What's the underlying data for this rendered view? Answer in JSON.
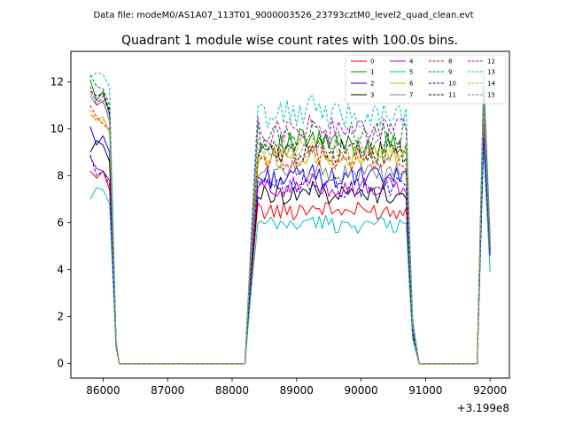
{
  "figure": {
    "suptitle": "Data file: modeM0/AS1A07_113T01_9000003526_23793cztM0_level2_quad_clean.evt",
    "offset_label": "+3.199e8"
  },
  "chart_data": {
    "type": "line",
    "title": "Quadrant 1 module wise count rates with 100.0s bins.",
    "xlabel": "",
    "ylabel": "",
    "x_offset": 319900000,
    "xlim": [
      85500,
      92300
    ],
    "ylim": [
      -0.62,
      13.3
    ],
    "grid": false,
    "legend": {
      "placement": "top-right",
      "columns": 4
    },
    "xticks": [
      86000,
      87000,
      88000,
      89000,
      90000,
      91000,
      92000
    ],
    "yticks": [
      0,
      2,
      4,
      6,
      8,
      10,
      12
    ],
    "xtick_labels": [
      "86000",
      "87000",
      "88000",
      "89000",
      "90000",
      "91000",
      "92000"
    ],
    "ytick_labels": [
      "0",
      "2",
      "4",
      "6",
      "8",
      "10",
      "12"
    ],
    "segments": [
      {
        "start": 85800,
        "end": 86300
      },
      {
        "start": 88200,
        "end": 90900
      },
      {
        "start": 91800,
        "end": 92000
      }
    ],
    "series": [
      {
        "name": "0",
        "color": "#ff0000",
        "dash": "solid",
        "seg1": [
          8.2,
          7.9,
          8.2,
          7.4,
          0.8
        ],
        "seg2_base": 6.5,
        "seg3_peak": 10.4,
        "seg3_end": 4.8
      },
      {
        "name": "1",
        "color": "#008000",
        "dash": "solid",
        "seg1": [
          12.1,
          11.2,
          11.6,
          10.6,
          0.9
        ],
        "seg2_base": 9.3,
        "seg3_peak": 11.8,
        "seg3_end": 5.2
      },
      {
        "name": "2",
        "color": "#0000ff",
        "dash": "solid",
        "seg1": [
          10.1,
          9.3,
          9.7,
          9.0,
          0.8
        ],
        "seg2_base": 7.9,
        "seg3_peak": 10.6,
        "seg3_end": 4.9
      },
      {
        "name": "3",
        "color": "#000000",
        "dash": "solid",
        "seg1": [
          9.0,
          9.5,
          9.3,
          8.6,
          0.8
        ],
        "seg2_base": 7.2,
        "seg3_peak": 9.8,
        "seg3_end": 4.7
      },
      {
        "name": "4",
        "color": "#bf00bf",
        "dash": "solid",
        "seg1": [
          8.8,
          8.3,
          8.2,
          7.8,
          0.8
        ],
        "seg2_base": 7.5,
        "seg3_peak": 10.0,
        "seg3_end": 4.7
      },
      {
        "name": "5",
        "color": "#00bfbf",
        "dash": "solid",
        "seg1": [
          7.0,
          7.5,
          7.4,
          6.8,
          0.7
        ],
        "seg2_base": 5.9,
        "seg3_peak": 9.2,
        "seg3_end": 3.9
      },
      {
        "name": "6",
        "color": "#bfbf00",
        "dash": "solid",
        "seg1": [
          10.6,
          10.4,
          10.5,
          9.8,
          0.9
        ],
        "seg2_base": 8.8,
        "seg3_peak": 11.2,
        "seg3_end": 5.0
      },
      {
        "name": "7",
        "color": "#808080",
        "dash": "solid",
        "seg1": [
          11.4,
          11.0,
          11.2,
          10.3,
          0.9
        ],
        "seg2_base": 8.1,
        "seg3_peak": 10.8,
        "seg3_end": 5.0
      },
      {
        "name": "8",
        "color": "#ff0000",
        "dash": "dashed",
        "seg1": [
          11.0,
          10.5,
          10.2,
          10.0,
          0.9
        ],
        "seg2_base": 8.7,
        "seg3_peak": 11.0,
        "seg3_end": 5.0
      },
      {
        "name": "9",
        "color": "#008000",
        "dash": "dashed",
        "seg1": [
          12.3,
          11.8,
          11.7,
          11.0,
          1.0
        ],
        "seg2_base": 9.7,
        "seg3_peak": 12.0,
        "seg3_end": 5.3
      },
      {
        "name": "10",
        "color": "#0000ff",
        "dash": "dashed",
        "seg1": [
          8.9,
          8.0,
          8.2,
          7.6,
          0.8
        ],
        "seg2_base": 7.5,
        "seg3_peak": 9.6,
        "seg3_end": 4.6
      },
      {
        "name": "11",
        "color": "#000000",
        "dash": "dashed",
        "seg1": [
          11.6,
          11.4,
          11.5,
          10.8,
          0.9
        ],
        "seg2_base": 9.0,
        "seg3_peak": 11.4,
        "seg3_end": 5.1
      },
      {
        "name": "12",
        "color": "#bf00bf",
        "dash": "dashed",
        "seg1": [
          11.8,
          11.0,
          11.4,
          10.6,
          0.9
        ],
        "seg2_base": 9.9,
        "seg3_peak": 11.6,
        "seg3_end": 5.2
      },
      {
        "name": "13",
        "color": "#00bfbf",
        "dash": "dashed",
        "seg1": [
          12.2,
          12.4,
          12.3,
          11.8,
          1.0
        ],
        "seg2_base": 10.6,
        "seg3_peak": 12.5,
        "seg3_end": 5.5
      },
      {
        "name": "14",
        "color": "#bfbf00",
        "dash": "dashed",
        "seg1": [
          10.8,
          10.3,
          10.4,
          9.9,
          0.9
        ],
        "seg2_base": 8.9,
        "seg3_peak": 11.1,
        "seg3_end": 5.0
      },
      {
        "name": "15",
        "color": "#808080",
        "dash": "dashed",
        "seg1": [
          11.5,
          11.2,
          11.1,
          10.5,
          0.9
        ],
        "seg2_base": 9.1,
        "seg3_peak": 11.3,
        "seg3_end": 5.1
      }
    ]
  }
}
